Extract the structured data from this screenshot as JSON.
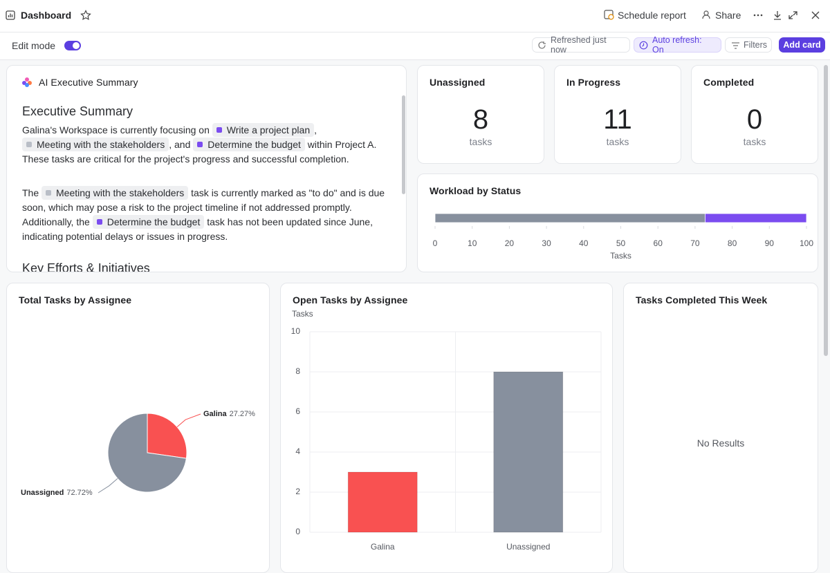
{
  "header": {
    "title": "Dashboard",
    "schedule": "Schedule report",
    "share": "Share"
  },
  "toolbar": {
    "edit_mode": "Edit mode",
    "refreshed": "Refreshed just now",
    "auto_refresh": "Auto refresh: On",
    "filters": "Filters",
    "add_card": "Add card"
  },
  "summary": {
    "card_title": "AI Executive Summary",
    "heading": "Executive Summary",
    "paragraphs": [
      [
        "Galina's Workspace is currently focusing on ",
        {
          "chip": "Write a project plan",
          "color": "#7b4cf0"
        },
        ", ",
        {
          "chip": "Meeting with the stakeholders",
          "color": "#b9bec7"
        },
        ", and ",
        {
          "chip": "Determine the budget",
          "color": "#7b4cf0"
        },
        " within Project A. These tasks are critical for the project's progress and successful completion."
      ],
      [
        "The ",
        {
          "chip": "Meeting with the stakeholders",
          "color": "#b9bec7"
        },
        " task is currently marked as \"to do\" and is due soon, which may pose a risk to the project timeline if not addressed promptly. Additionally, the ",
        {
          "chip": "Determine the budget",
          "color": "#7b4cf0"
        },
        " task has not been updated since June, indicating potential delays or issues in progress."
      ]
    ],
    "heading2": "Key Efforts & Initiatives"
  },
  "stat_cards": [
    {
      "title": "Unassigned",
      "value": 8,
      "unit": "tasks"
    },
    {
      "title": "In Progress",
      "value": 11,
      "unit": "tasks"
    },
    {
      "title": "Completed",
      "value": 0,
      "unit": "tasks"
    }
  ],
  "chart_data": [
    {
      "type": "bar",
      "orientation": "horizontal",
      "stacked": true,
      "title": "Workload by Status",
      "xlabel": "Tasks",
      "series": [
        {
          "color": "#87909e",
          "values": [
            72.7
          ]
        },
        {
          "color": "#7b4cf0",
          "values": [
            27.3
          ]
        }
      ],
      "xlim": [
        0,
        100
      ],
      "xticks": [
        0,
        10,
        20,
        30,
        40,
        50,
        60,
        70,
        80,
        90,
        100
      ]
    },
    {
      "type": "pie",
      "title": "Total Tasks by Assignee",
      "categories": [
        "Galina",
        "Unassigned"
      ],
      "values": [
        27.27,
        72.72
      ],
      "value_labels": [
        "27.27%",
        "72.72%"
      ],
      "colors": [
        "#f95151",
        "#87909e"
      ]
    },
    {
      "type": "bar",
      "orientation": "vertical",
      "title": "Open Tasks by Assignee",
      "ylabel": "Tasks",
      "categories": [
        "Galina",
        "Unassigned"
      ],
      "values": [
        3,
        8
      ],
      "colors": [
        "#f95151",
        "#87909e"
      ],
      "ylim": [
        0,
        10
      ],
      "yticks": [
        0,
        2,
        4,
        6,
        8,
        10
      ],
      "grid": true
    }
  ],
  "empty_card": {
    "title": "Tasks Completed This Week",
    "message": "No Results"
  }
}
